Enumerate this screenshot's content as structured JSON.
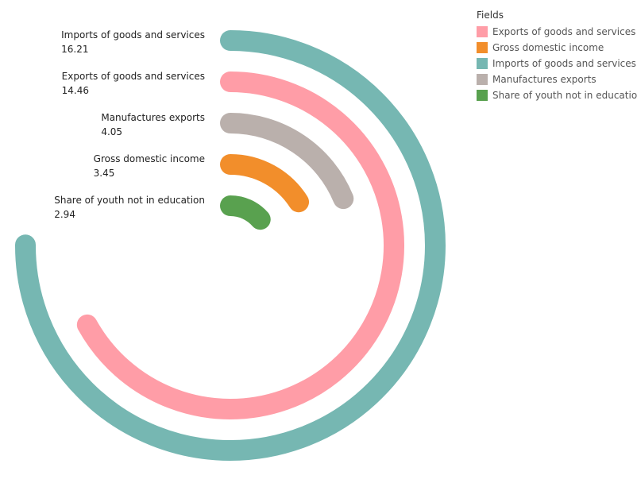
{
  "chart_data": {
    "type": "radial-bar",
    "series": [
      {
        "name": "Imports of goods and services",
        "value": 16.21,
        "value_label": "16.21",
        "color": "#76B7B2"
      },
      {
        "name": "Exports of goods and services",
        "value": 14.46,
        "value_label": "14.46",
        "color": "#FF9DA7"
      },
      {
        "name": "Manufactures exports",
        "value": 4.05,
        "value_label": "4.05",
        "color": "#BAB0AC"
      },
      {
        "name": "Gross domestic income",
        "value": 3.45,
        "value_label": "3.45",
        "color": "#F28E2B"
      },
      {
        "name": "Share of youth not in education",
        "value": 2.94,
        "value_label": "2.94",
        "color": "#59A14F"
      }
    ],
    "max_value": 21.6,
    "legend": {
      "title": "Fields",
      "position": "top-right",
      "items": [
        {
          "label": "Exports of goods and services",
          "color": "#FF9DA7"
        },
        {
          "label": "Gross domestic income",
          "color": "#F28E2B"
        },
        {
          "label": "Imports of goods and services",
          "color": "#76B7B2"
        },
        {
          "label": "Manufactures exports",
          "color": "#BAB0AC"
        },
        {
          "label": "Share of youth not in education",
          "color": "#59A14F"
        }
      ]
    }
  }
}
